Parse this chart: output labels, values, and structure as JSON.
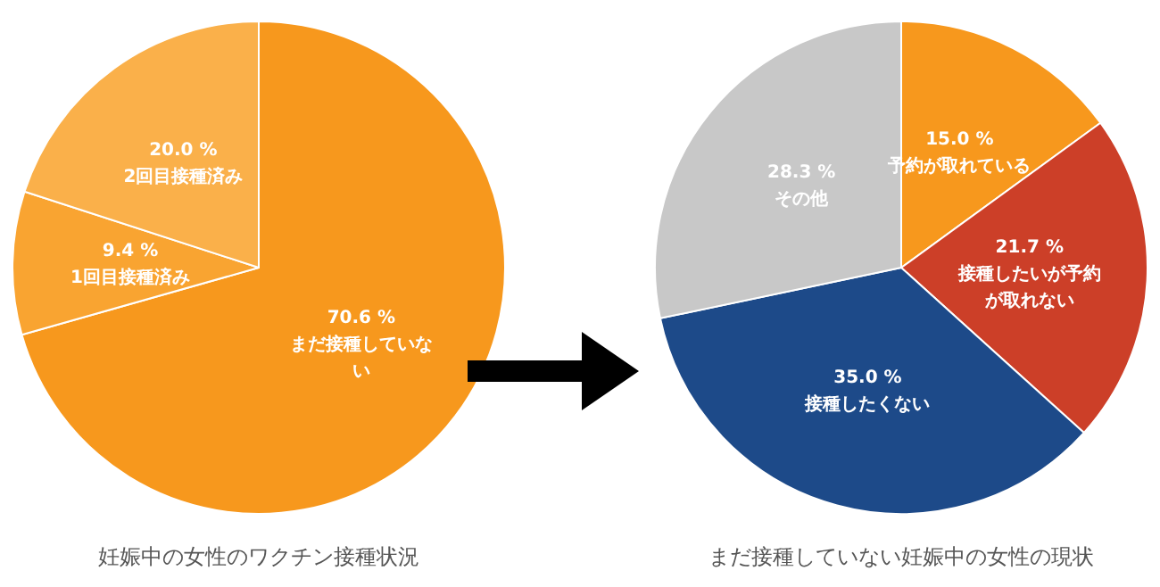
{
  "chart_data": [
    {
      "type": "pie",
      "title": "妊娠中の女性のワクチン接種状況",
      "categories": [
        "まだ接種していない",
        "1回目接種済み",
        "2回目接種済み"
      ],
      "values": [
        70.6,
        9.4,
        20.0
      ],
      "value_labels": [
        "70.6 %",
        "9.4 %",
        "20.0 %"
      ],
      "colors": [
        "#f7981d",
        "#f9a431",
        "#fab04a"
      ],
      "legend": false
    },
    {
      "type": "pie",
      "title": "まだ接種していない妊娠中の女性の現状",
      "categories": [
        "予約が取れている",
        "接種したいが予約が取れない",
        "接種したくない",
        "その他"
      ],
      "values": [
        15.0,
        21.7,
        35.0,
        28.3
      ],
      "value_labels": [
        "15.0 %",
        "21.7 %",
        "35.0 %",
        "28.3 %"
      ],
      "colors": [
        "#f7981d",
        "#cc3f28",
        "#1d4a89",
        "#c8c8c8"
      ],
      "legend": false
    }
  ]
}
